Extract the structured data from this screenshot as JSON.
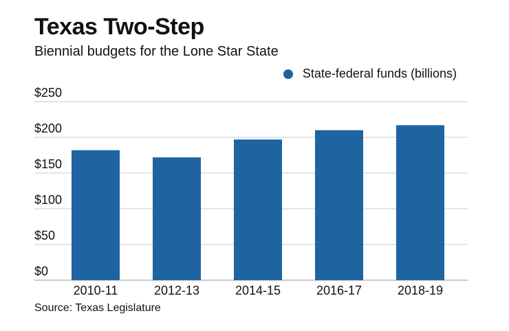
{
  "chart_data": {
    "type": "bar",
    "title": "Texas Two-Step",
    "subtitle": "Biennial budgets for the Lone Star State",
    "categories": [
      "2010-11",
      "2012-13",
      "2014-15",
      "2016-17",
      "2018-19"
    ],
    "series": [
      {
        "name": "State-federal funds (billions)",
        "values": [
          182,
          172,
          197,
          210,
          217
        ]
      }
    ],
    "ylim": [
      0,
      250
    ],
    "yticks": [
      0,
      50,
      100,
      150,
      200,
      250
    ],
    "ytick_labels": [
      "$0",
      "$50",
      "$100",
      "$150",
      "$200",
      "$250"
    ],
    "xlabel": "",
    "ylabel": "",
    "grid": true,
    "legend_position": "top-right",
    "source": "Source: Texas Legislature",
    "bar_color": "#1e64a0",
    "grid_color": "#c8c8c8"
  }
}
